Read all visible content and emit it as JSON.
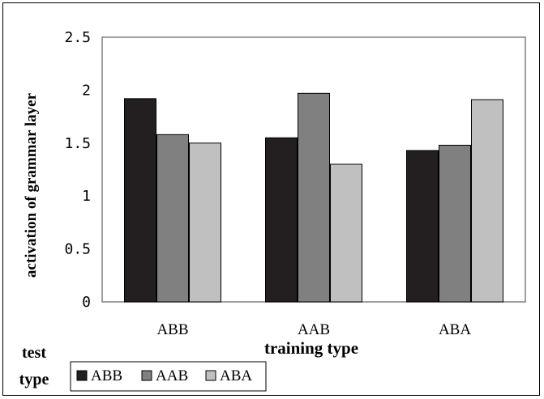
{
  "chart_data": {
    "type": "bar",
    "categories": [
      "ABB",
      "AAB",
      "ABA"
    ],
    "series": [
      {
        "name": "ABB",
        "values": [
          1.92,
          1.55,
          1.43
        ],
        "color": "#231f20"
      },
      {
        "name": "AAB",
        "values": [
          1.58,
          1.97,
          1.48
        ],
        "color": "#808080"
      },
      {
        "name": "ABA",
        "values": [
          1.5,
          1.3,
          1.91
        ],
        "color": "#c0c0c0"
      }
    ],
    "xlabel": "training type",
    "ylabel": "activation of grammar layer",
    "ylim": [
      0,
      2.5
    ],
    "yticks": [
      "0",
      "0.5",
      "1",
      "1.5",
      "2",
      "2.5"
    ],
    "legend_title": [
      "test",
      "type"
    ],
    "legend_position": "bottom-left",
    "grid": false
  }
}
